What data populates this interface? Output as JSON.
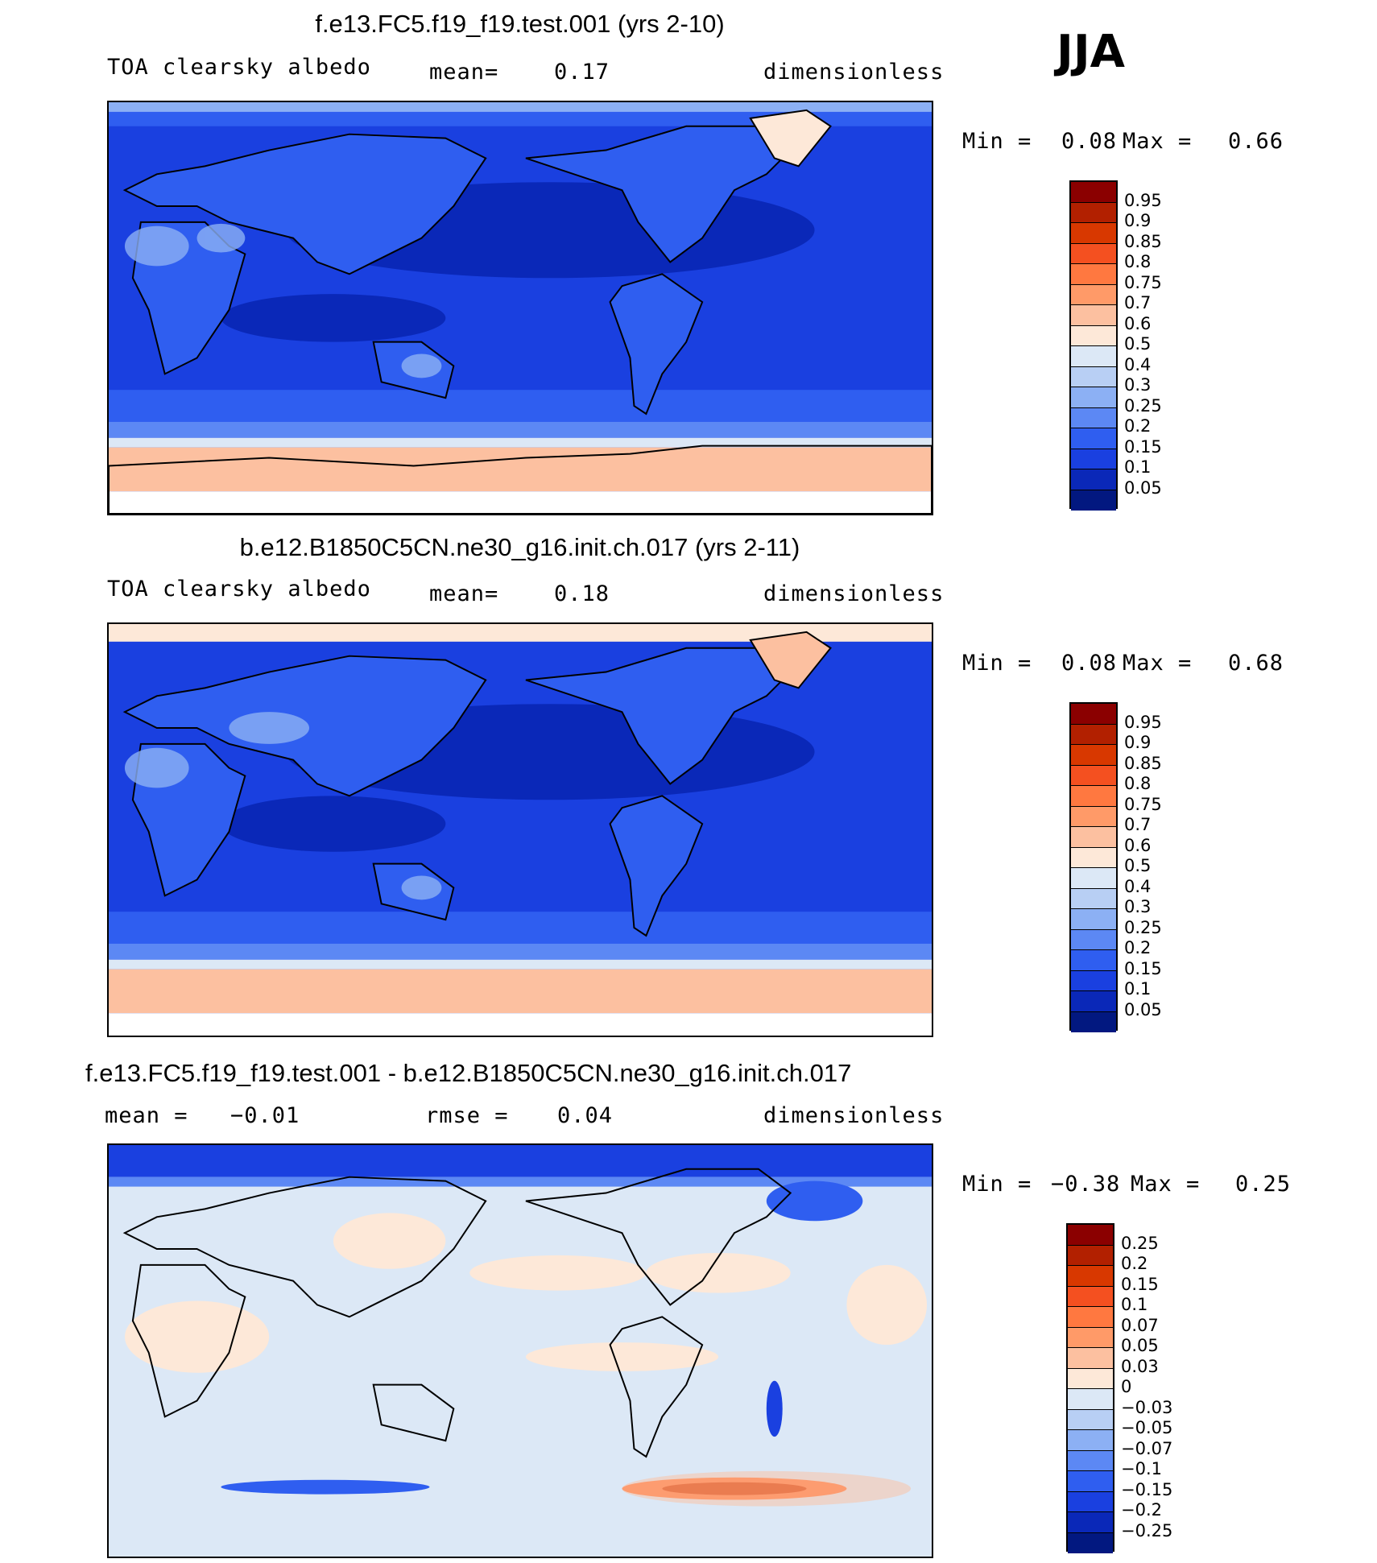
{
  "season": "JJA",
  "panels": [
    {
      "title": "f.e13.FC5.f19_f19.test.001 (yrs 2-10)",
      "left_label": "TOA clearsky albedo",
      "mid_label": "mean=",
      "mid_value": "0.17",
      "units": "dimensionless",
      "min_label": "Min =",
      "min_value": "0.08",
      "max_label": "Max =",
      "max_value": "0.66",
      "colorbar_levels": [
        "0.95",
        "0.9",
        "0.85",
        "0.8",
        "0.75",
        "0.7",
        "0.6",
        "0.5",
        "0.4",
        "0.3",
        "0.25",
        "0.2",
        "0.15",
        "0.1",
        "0.05"
      ],
      "colorbar_colors": [
        "#8b0000",
        "#b22000",
        "#d83800",
        "#f45020",
        "#ff7840",
        "#ff9a68",
        "#fcc0a0",
        "#fde8d8",
        "#dce8f6",
        "#b8cff4",
        "#8cb0f4",
        "#5c88f4",
        "#2f5ef0",
        "#1a40e0",
        "#0a28b8",
        "#021880"
      ]
    },
    {
      "title": "b.e12.B1850C5CN.ne30_g16.init.ch.017 (yrs 2-11)",
      "left_label": "TOA clearsky albedo",
      "mid_label": "mean=",
      "mid_value": "0.18",
      "units": "dimensionless",
      "min_label": "Min =",
      "min_value": "0.08",
      "max_label": "Max =",
      "max_value": "0.68",
      "colorbar_levels": [
        "0.95",
        "0.9",
        "0.85",
        "0.8",
        "0.75",
        "0.7",
        "0.6",
        "0.5",
        "0.4",
        "0.3",
        "0.25",
        "0.2",
        "0.15",
        "0.1",
        "0.05"
      ],
      "colorbar_colors": [
        "#8b0000",
        "#b22000",
        "#d83800",
        "#f45020",
        "#ff7840",
        "#ff9a68",
        "#fcc0a0",
        "#fde8d8",
        "#dce8f6",
        "#b8cff4",
        "#8cb0f4",
        "#5c88f4",
        "#2f5ef0",
        "#1a40e0",
        "#0a28b8",
        "#021880"
      ]
    },
    {
      "title": "f.e13.FC5.f19_f19.test.001 - b.e12.B1850C5CN.ne30_g16.init.ch.017",
      "left_label": "mean =",
      "left_value": "−0.01",
      "mid_label": "rmse =",
      "mid_value": "0.04",
      "units": "dimensionless",
      "min_label": "Min =",
      "min_value": "−0.38",
      "max_label": "Max =",
      "max_value": "0.25",
      "colorbar_levels": [
        "0.25",
        "0.2",
        "0.15",
        "0.1",
        "0.07",
        "0.05",
        "0.03",
        "0",
        "−0.03",
        "−0.05",
        "−0.07",
        "−0.1",
        "−0.15",
        "−0.2",
        "−0.25"
      ],
      "colorbar_colors": [
        "#8b0000",
        "#b22000",
        "#d83800",
        "#f45020",
        "#ff7840",
        "#ff9a68",
        "#fcc0a0",
        "#fde8d8",
        "#dce8f6",
        "#b8cff4",
        "#8cb0f4",
        "#5c88f4",
        "#2f5ef0",
        "#1a40e0",
        "#0a28b8",
        "#021880"
      ]
    }
  ],
  "chart_data": [
    {
      "type": "heatmap",
      "title": "f.e13.FC5.f19_f19.test.001 (yrs 2-10)",
      "field": "TOA clearsky albedo",
      "season": "JJA",
      "mean": 0.17,
      "min": 0.08,
      "max": 0.66,
      "units": "dimensionless",
      "contour_levels": [
        0.05,
        0.1,
        0.15,
        0.2,
        0.25,
        0.3,
        0.4,
        0.5,
        0.6,
        0.7,
        0.75,
        0.8,
        0.85,
        0.9,
        0.95
      ]
    },
    {
      "type": "heatmap",
      "title": "b.e12.B1850C5CN.ne30_g16.init.ch.017 (yrs 2-11)",
      "field": "TOA clearsky albedo",
      "season": "JJA",
      "mean": 0.18,
      "min": 0.08,
      "max": 0.68,
      "units": "dimensionless",
      "contour_levels": [
        0.05,
        0.1,
        0.15,
        0.2,
        0.25,
        0.3,
        0.4,
        0.5,
        0.6,
        0.7,
        0.75,
        0.8,
        0.85,
        0.9,
        0.95
      ]
    },
    {
      "type": "heatmap",
      "title": "f.e13.FC5.f19_f19.test.001 - b.e12.B1850C5CN.ne30_g16.init.ch.017",
      "season": "JJA",
      "mean": -0.01,
      "rmse": 0.04,
      "min": -0.38,
      "max": 0.25,
      "units": "dimensionless",
      "contour_levels": [
        -0.25,
        -0.2,
        -0.15,
        -0.1,
        -0.07,
        -0.05,
        -0.03,
        0,
        0.03,
        0.05,
        0.07,
        0.1,
        0.15,
        0.2,
        0.25
      ]
    }
  ]
}
